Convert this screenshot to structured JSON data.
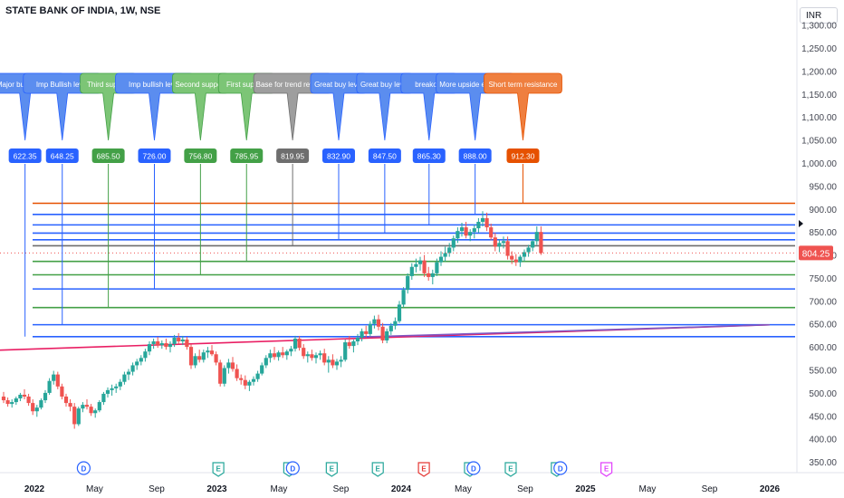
{
  "chart_title": "STATE BANK OF INDIA, 1W, NSE",
  "currency": "INR",
  "last_price": "804.25",
  "colors": {
    "up": "#26a69a",
    "down": "#ef5350",
    "blue_box": "#2962ff",
    "blue_callout": "#5b8def",
    "green_box": "#43a047",
    "green_callout": "#7cc576",
    "gray_box": "#6e6e6e",
    "gray_callout": "#9e9e9e",
    "orange_box": "#e65100",
    "orange_callout": "#ef7f3f",
    "trendline": "#e91e63"
  },
  "chart_data": {
    "type": "candlestick",
    "y_axis": {
      "min": 330,
      "max": 1320,
      "ticks": [
        "350.00",
        "400.00",
        "450.00",
        "500.00",
        "550.00",
        "600.00",
        "650.00",
        "700.00",
        "750.00",
        "800.00",
        "850.00",
        "900.00",
        "950.00",
        "1,000.00",
        "1,050.00",
        "1,100.00",
        "1,150.00",
        "1,200.00",
        "1,250.00",
        "1,300.00"
      ]
    },
    "x_axis": {
      "labels": [
        {
          "t": 0.5,
          "label": "2022",
          "bold": true
        },
        {
          "t": 17.5,
          "label": "May",
          "bold": false
        },
        {
          "t": 35,
          "label": "Sep",
          "bold": false
        },
        {
          "t": 52,
          "label": "2023",
          "bold": true
        },
        {
          "t": 69.5,
          "label": "May",
          "bold": false
        },
        {
          "t": 87,
          "label": "Sep",
          "bold": false
        },
        {
          "t": 104,
          "label": "2024",
          "bold": true
        },
        {
          "t": 121.5,
          "label": "May",
          "bold": false
        },
        {
          "t": 139,
          "label": "Sep",
          "bold": false
        },
        {
          "t": 156,
          "label": "2025",
          "bold": true
        },
        {
          "t": 173.5,
          "label": "May",
          "bold": false
        },
        {
          "t": 191,
          "label": "Sep",
          "bold": false
        },
        {
          "t": 208,
          "label": "2026",
          "bold": true
        }
      ]
    },
    "events": [
      {
        "t": 18.5,
        "label": "D",
        "color": "#2962ff"
      },
      {
        "t": 56.5,
        "label": "E",
        "color": "#26a69a"
      },
      {
        "t": 76.5,
        "label": "E",
        "color": "#26a69a"
      },
      {
        "t": 77.5,
        "label": "D",
        "color": "#2962ff"
      },
      {
        "t": 88.5,
        "label": "E",
        "color": "#26a69a"
      },
      {
        "t": 101.5,
        "label": "E",
        "color": "#26a69a"
      },
      {
        "t": 114.5,
        "label": "E",
        "color": "#e53935"
      },
      {
        "t": 127.5,
        "label": "E",
        "color": "#26a69a"
      },
      {
        "t": 128.5,
        "label": "D",
        "color": "#2962ff"
      },
      {
        "t": 139,
        "label": "E",
        "color": "#26a69a"
      },
      {
        "t": 152,
        "label": "E",
        "color": "#26a69a"
      },
      {
        "t": 153,
        "label": "D",
        "color": "#2962ff"
      },
      {
        "t": 166,
        "label": "E",
        "color": "#e040fb"
      }
    ],
    "candles": [
      [
        492,
        502,
        478,
        484
      ],
      [
        484,
        490,
        470,
        476
      ],
      [
        476,
        486,
        468,
        480
      ],
      [
        480,
        492,
        474,
        488
      ],
      [
        488,
        500,
        482,
        496
      ],
      [
        496,
        508,
        486,
        492
      ],
      [
        492,
        498,
        472,
        478
      ],
      [
        478,
        486,
        452,
        460
      ],
      [
        460,
        474,
        448,
        468
      ],
      [
        468,
        488,
        464,
        484
      ],
      [
        484,
        506,
        478,
        500
      ],
      [
        500,
        532,
        496,
        526
      ],
      [
        526,
        548,
        518,
        540
      ],
      [
        540,
        546,
        508,
        514
      ],
      [
        514,
        520,
        486,
        492
      ],
      [
        492,
        498,
        470,
        478
      ],
      [
        478,
        486,
        460,
        470
      ],
      [
        470,
        478,
        422,
        432
      ],
      [
        432,
        470,
        428,
        466
      ],
      [
        466,
        480,
        458,
        474
      ],
      [
        474,
        486,
        464,
        470
      ],
      [
        470,
        476,
        450,
        456
      ],
      [
        456,
        466,
        446,
        462
      ],
      [
        462,
        484,
        458,
        480
      ],
      [
        480,
        502,
        474,
        498
      ],
      [
        498,
        512,
        490,
        506
      ],
      [
        506,
        518,
        494,
        510
      ],
      [
        510,
        520,
        500,
        514
      ],
      [
        514,
        530,
        506,
        524
      ],
      [
        524,
        546,
        518,
        540
      ],
      [
        540,
        552,
        528,
        546
      ],
      [
        546,
        566,
        538,
        560
      ],
      [
        560,
        574,
        550,
        568
      ],
      [
        568,
        582,
        560,
        576
      ],
      [
        576,
        596,
        568,
        590
      ],
      [
        590,
        612,
        582,
        606
      ],
      [
        606,
        618,
        596,
        612
      ],
      [
        612,
        622,
        598,
        604
      ],
      [
        604,
        614,
        596,
        608
      ],
      [
        608,
        618,
        594,
        600
      ],
      [
        600,
        612,
        588,
        606
      ],
      [
        606,
        626,
        600,
        620
      ],
      [
        620,
        630,
        606,
        612
      ],
      [
        612,
        624,
        604,
        616
      ],
      [
        616,
        622,
        594,
        600
      ],
      [
        600,
        606,
        552,
        560
      ],
      [
        560,
        586,
        554,
        580
      ],
      [
        580,
        594,
        566,
        572
      ],
      [
        572,
        594,
        566,
        588
      ],
      [
        588,
        600,
        576,
        592
      ],
      [
        592,
        604,
        580,
        584
      ],
      [
        584,
        590,
        560,
        566
      ],
      [
        566,
        572,
        514,
        520
      ],
      [
        520,
        560,
        514,
        554
      ],
      [
        554,
        574,
        542,
        566
      ],
      [
        566,
        578,
        546,
        552
      ],
      [
        552,
        562,
        526,
        532
      ],
      [
        532,
        540,
        518,
        528
      ],
      [
        528,
        538,
        508,
        516
      ],
      [
        516,
        528,
        504,
        524
      ],
      [
        524,
        536,
        516,
        530
      ],
      [
        530,
        548,
        524,
        542
      ],
      [
        542,
        566,
        538,
        560
      ],
      [
        560,
        582,
        554,
        576
      ],
      [
        576,
        594,
        566,
        586
      ],
      [
        586,
        600,
        572,
        578
      ],
      [
        578,
        592,
        570,
        588
      ],
      [
        588,
        600,
        576,
        582
      ],
      [
        582,
        594,
        572,
        590
      ],
      [
        590,
        602,
        580,
        596
      ],
      [
        596,
        624,
        590,
        618
      ],
      [
        618,
        624,
        592,
        598
      ],
      [
        598,
        606,
        574,
        580
      ],
      [
        580,
        590,
        566,
        584
      ],
      [
        584,
        594,
        570,
        576
      ],
      [
        576,
        588,
        564,
        582
      ],
      [
        582,
        592,
        572,
        586
      ],
      [
        586,
        596,
        560,
        566
      ],
      [
        566,
        580,
        544,
        572
      ],
      [
        572,
        584,
        554,
        560
      ],
      [
        560,
        574,
        550,
        568
      ],
      [
        568,
        580,
        556,
        572
      ],
      [
        572,
        616,
        568,
        610
      ],
      [
        610,
        624,
        596,
        602
      ],
      [
        602,
        616,
        588,
        612
      ],
      [
        612,
        628,
        604,
        620
      ],
      [
        620,
        640,
        612,
        634
      ],
      [
        634,
        646,
        620,
        628
      ],
      [
        628,
        656,
        624,
        650
      ],
      [
        650,
        668,
        640,
        660
      ],
      [
        660,
        670,
        636,
        644
      ],
      [
        644,
        652,
        608,
        614
      ],
      [
        614,
        640,
        608,
        634
      ],
      [
        634,
        652,
        626,
        646
      ],
      [
        646,
        664,
        638,
        656
      ],
      [
        656,
        700,
        652,
        692
      ],
      [
        692,
        730,
        686,
        724
      ],
      [
        724,
        760,
        716,
        754
      ],
      [
        754,
        782,
        746,
        774
      ],
      [
        774,
        792,
        762,
        780
      ],
      [
        780,
        796,
        766,
        788
      ],
      [
        788,
        800,
        752,
        760
      ],
      [
        760,
        774,
        744,
        752
      ],
      [
        752,
        768,
        736,
        760
      ],
      [
        760,
        792,
        754,
        784
      ],
      [
        784,
        808,
        776,
        796
      ],
      [
        796,
        818,
        786,
        804
      ],
      [
        804,
        826,
        796,
        816
      ],
      [
        816,
        842,
        808,
        836
      ],
      [
        836,
        860,
        826,
        852
      ],
      [
        852,
        870,
        840,
        860
      ],
      [
        860,
        872,
        836,
        842
      ],
      [
        842,
        856,
        830,
        850
      ],
      [
        850,
        866,
        836,
        858
      ],
      [
        858,
        880,
        848,
        872
      ],
      [
        872,
        895,
        862,
        880
      ],
      [
        880,
        892,
        852,
        860
      ],
      [
        860,
        868,
        832,
        838
      ],
      [
        838,
        848,
        808,
        818
      ],
      [
        818,
        834,
        806,
        826
      ],
      [
        826,
        840,
        814,
        830
      ],
      [
        830,
        840,
        790,
        798
      ],
      [
        798,
        808,
        780,
        790
      ],
      [
        790,
        802,
        776,
        784
      ],
      [
        784,
        800,
        774,
        796
      ],
      [
        796,
        812,
        786,
        806
      ],
      [
        806,
        822,
        796,
        816
      ],
      [
        816,
        834,
        808,
        830
      ],
      [
        830,
        862,
        822,
        850
      ],
      [
        850,
        862,
        800,
        804
      ]
    ],
    "levels": [
      {
        "value": 622.35,
        "label": "622.35",
        "callout": "Major bullish level",
        "color": "blue",
        "t": 4
      },
      {
        "value": 648.25,
        "label": "648.25",
        "callout": "Imp Bullish level",
        "color": "blue",
        "t": 14.5
      },
      {
        "value": 685.5,
        "label": "685.50",
        "callout": "Third support",
        "color": "green",
        "t": 27.5
      },
      {
        "value": 726.0,
        "label": "726.00",
        "callout": "Imp bullish level",
        "color": "blue",
        "t": 40.5
      },
      {
        "value": 756.8,
        "label": "756.80",
        "callout": "Second support",
        "color": "green",
        "t": 53.5
      },
      {
        "value": 785.95,
        "label": "785.95",
        "callout": "First support",
        "color": "green",
        "t": 66.5
      },
      {
        "value": 819.95,
        "label": "819.95",
        "callout": "Base for trend reversal",
        "color": "gray",
        "t": 79.5
      },
      {
        "value": 832.9,
        "label": "832.90",
        "callout": "Great buy level",
        "color": "blue",
        "t": 92.5
      },
      {
        "value": 847.5,
        "label": "847.50",
        "callout": "Great buy level",
        "color": "blue",
        "t": 105.5
      },
      {
        "value": 865.3,
        "label": "865.30",
        "callout": "breakout",
        "color": "blue",
        "t": 118
      },
      {
        "value": 888.0,
        "label": "888.00",
        "callout": "More upside expected",
        "color": "blue",
        "t": 131
      },
      {
        "value": 912.3,
        "label": "912.30",
        "callout": "Short term resistance",
        "color": "orange",
        "t": 144.5
      }
    ],
    "trendlines": [
      {
        "from": [
          0,
          593
        ],
        "to": [
          208,
          648
        ]
      },
      {
        "from": [
          104,
          622
        ],
        "to": [
          208,
          648
        ]
      }
    ]
  }
}
